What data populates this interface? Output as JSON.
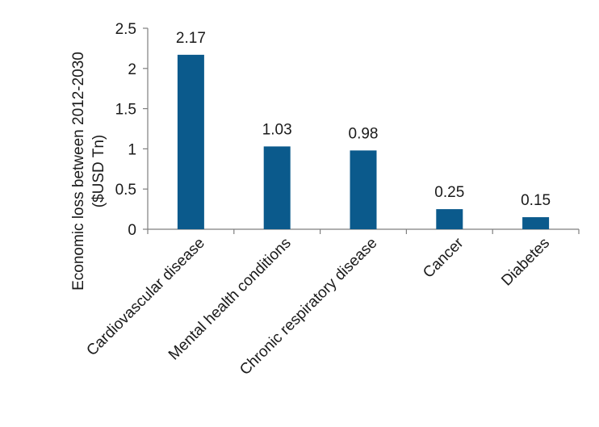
{
  "chart_data": {
    "type": "bar",
    "title": "",
    "xlabel": "",
    "ylabel_lines": [
      "Economic loss between 2012-2030",
      "($USD Tn)"
    ],
    "categories": [
      "Cardiovascular disease",
      "Mental health conditions",
      "Chronic respiratory disease",
      "Cancer",
      "Diabetes"
    ],
    "values": [
      2.17,
      1.03,
      0.98,
      0.25,
      0.15
    ],
    "value_labels": [
      "2.17",
      "1.03",
      "0.98",
      "0.25",
      "0.15"
    ],
    "ylim": [
      0,
      2.5
    ],
    "yticks": [
      0,
      0.5,
      1,
      1.5,
      2,
      2.5
    ],
    "ytick_labels": [
      "0",
      "0.5",
      "1",
      "1.5",
      "2",
      "2.5"
    ],
    "bar_color": "#0b5a8c",
    "axis_color": "#7f7f7f",
    "grid": false,
    "legend": "none"
  }
}
